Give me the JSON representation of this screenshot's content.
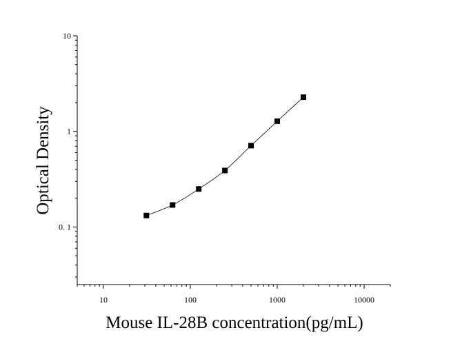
{
  "chart_data": {
    "type": "scatter",
    "title": "",
    "xlabel": "Mouse IL-28B concentration(pg/mL)",
    "ylabel": "Optical Density",
    "x_scale": "log",
    "y_scale": "log",
    "xlim": [
      5,
      20000
    ],
    "ylim": [
      0.025,
      10
    ],
    "x_ticks": [
      {
        "value": 10,
        "label": "10"
      },
      {
        "value": 100,
        "label": "100"
      },
      {
        "value": 1000,
        "label": "1000"
      },
      {
        "value": 10000,
        "label": "10000"
      }
    ],
    "y_ticks": [
      {
        "value": 0.1,
        "label": "0. 1"
      },
      {
        "value": 1,
        "label": "1"
      },
      {
        "value": 10,
        "label": "10"
      }
    ],
    "grid": false,
    "legend": "none",
    "fit_curve": true,
    "marker": "square",
    "color": "#000000",
    "series": [
      {
        "x": [
          31.25,
          62.5,
          125,
          250,
          500,
          1000,
          2000
        ],
        "y": [
          0.132,
          0.17,
          0.25,
          0.39,
          0.71,
          1.28,
          2.28
        ]
      }
    ]
  }
}
